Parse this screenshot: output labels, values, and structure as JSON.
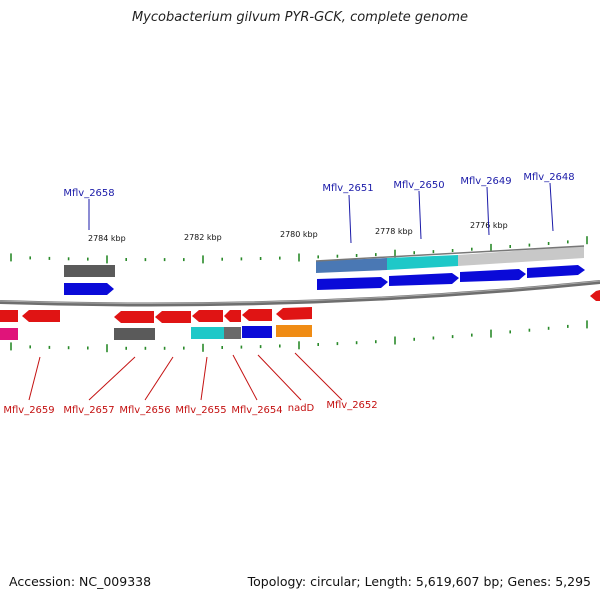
{
  "title": "Mycobacterium gilvum PYR-GCK, complete genome",
  "accession_text": "Accession: NC_009338",
  "summary_text": "Topology: circular; Length: 5,619,607 bp; Genes: 5,295",
  "colors": {
    "forward_gene": "#0a0ad8",
    "reverse_gene": "#e01414",
    "backbone": "#808080",
    "tick": "#2a8a2a",
    "forward_label": "#1a1aa8",
    "reverse_label": "#c41212",
    "orange": "#f08c14",
    "cyan": "#1ec8c8",
    "dark_gray": "#5a5a5a",
    "light_gray": "#c8c8c8",
    "steel_blue": "#4a78b4",
    "magenta": "#e0147a"
  },
  "scale_labels": [
    "2784 kbp",
    "2782 kbp",
    "2780 kbp",
    "2778 kbp",
    "2776 kbp"
  ],
  "forward_gene_labels": [
    "Mflv_2658",
    "Mflv_2651",
    "Mflv_2650",
    "Mflv_2649",
    "Mflv_2648"
  ],
  "reverse_gene_labels": [
    "Mflv_2659",
    "Mflv_2657",
    "Mflv_2656",
    "Mflv_2655",
    "Mflv_2654",
    "nadD",
    "Mflv_2652"
  ]
}
